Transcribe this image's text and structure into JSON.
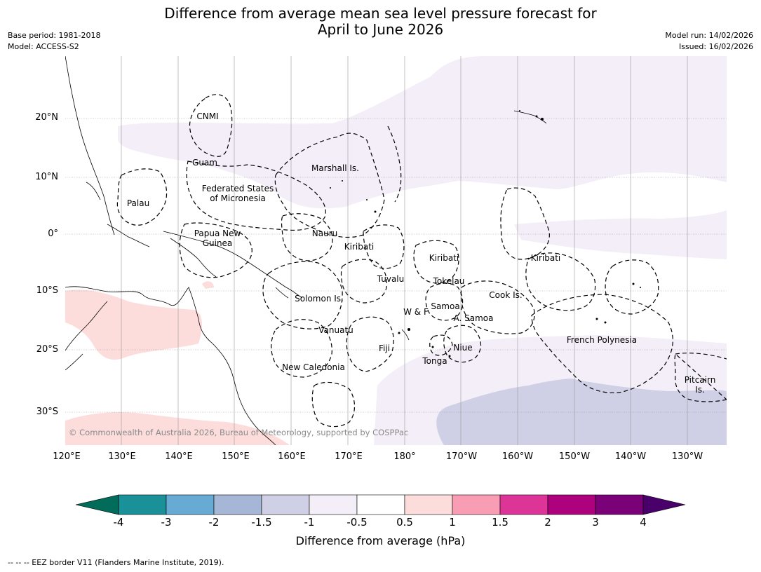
{
  "title_line1": "Difference from average mean sea level pressure forecast for",
  "title_line2": "April to June 2026",
  "meta_left": {
    "base_period": "Base period: 1981-2018",
    "model": "Model: ACCESS-S2"
  },
  "meta_right": {
    "model_run": "Model run: 14/02/2026",
    "issued": "Issued: 16/02/2026"
  },
  "copyright": "© Commonwealth of Australia 2026, Bureau of Meteorology, supported by COSPPac",
  "lat_ticks": [
    "20°N",
    "10°N",
    "0°",
    "10°S",
    "20°S",
    "30°S"
  ],
  "lon_ticks": [
    "120°E",
    "130°E",
    "140°E",
    "150°E",
    "160°E",
    "170°E",
    "180°",
    "170°W",
    "160°W",
    "150°W",
    "140°W",
    "130°W"
  ],
  "regions": {
    "cnmi": "CNMI",
    "guam": "Guam",
    "marshall": "Marshall Is.",
    "fsm_1": "Federated States",
    "fsm_2": "of Micronesia",
    "palau": "Palau",
    "png_1": "Papua New",
    "png_2": "Guinea",
    "nauru": "Nauru",
    "kiribati_w": "Kiribati",
    "kiribati_c": "Kiribati",
    "kiribati_e": "Kiribati",
    "tuvalu": "Tuvalu",
    "tokelau": "Tokelau",
    "cook": "Cook Is.",
    "solomon": "Solomon Is.",
    "samoa": "Samoa",
    "wf": "W & F",
    "asamoa": "A. Samoa",
    "vanuatu": "Vanuatu",
    "fiji": "Fiji",
    "niue": "Niue",
    "tonga": "Tonga",
    "frpoly": "French Polynesia",
    "newcal": "New Caledonia",
    "pitcairn_1": "Pitcairn",
    "pitcairn_2": "Is."
  },
  "colorbar": {
    "ticks": [
      "-4",
      "-3",
      "-2",
      "-1.5",
      "-1",
      "-0.5",
      "0.5",
      "1",
      "1.5",
      "2",
      "3",
      "4"
    ],
    "colors": [
      "#1a9098",
      "#67aad4",
      "#a5b6d6",
      "#cfcfe5",
      "#f3eef7",
      "#ffffff",
      "#fddcdc",
      "#f99db4",
      "#dd3497",
      "#ae017e",
      "#7a0177"
    ],
    "under_color": "#016c59",
    "over_color": "#49006a",
    "label": "Difference from average (hPa)"
  },
  "footnote": "--  --  -- EEZ border V11 (Flanders Marine Institute, 2019)."
}
